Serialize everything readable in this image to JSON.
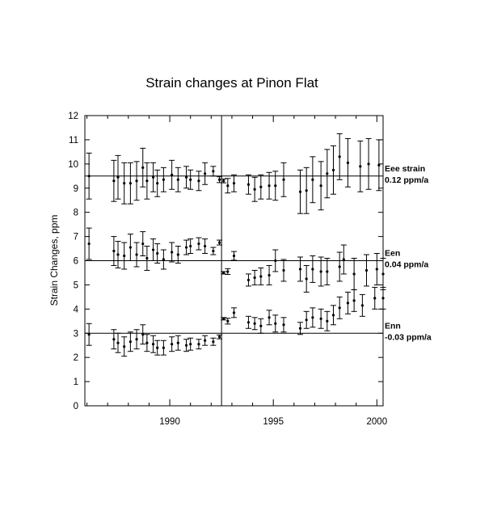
{
  "chart_data": {
    "type": "scatter",
    "title": "Strain changes at Pinon Flat",
    "xlabel": "",
    "ylabel": "Strain Changes, ppm",
    "xlim": [
      1985.9,
      2000.3
    ],
    "ylim": [
      0,
      12
    ],
    "x_ticks": [
      "1990",
      "1995",
      "2000"
    ],
    "y_ticks": [
      "0",
      "1",
      "2",
      "3",
      "4",
      "5",
      "6",
      "7",
      "8",
      "9",
      "10",
      "11",
      "12"
    ],
    "grid": false,
    "event_line_x": 1992.5,
    "annotations": [
      {
        "series": "Eee",
        "line1": "Eee strain",
        "line2": "0.12 ppm/a",
        "ref_y": 9.5
      },
      {
        "series": "Een",
        "line1": "Een",
        "line2": "0.04 ppm/a",
        "ref_y": 6.0
      },
      {
        "series": "Enn",
        "line1": "Enn",
        "line2": "-0.03 ppm/a",
        "ref_y": 3.0
      }
    ],
    "series": [
      {
        "key": "Eee",
        "points": [
          {
            "x": 1986.1,
            "y": 9.5,
            "err": 0.95
          },
          {
            "x": 1987.3,
            "y": 9.3,
            "err": 0.85
          },
          {
            "x": 1987.5,
            "y": 9.45,
            "err": 0.9
          },
          {
            "x": 1987.8,
            "y": 9.2,
            "err": 0.85
          },
          {
            "x": 1988.1,
            "y": 9.2,
            "err": 0.85
          },
          {
            "x": 1988.4,
            "y": 9.3,
            "err": 0.8
          },
          {
            "x": 1988.7,
            "y": 9.85,
            "err": 0.8
          },
          {
            "x": 1988.9,
            "y": 9.3,
            "err": 0.75
          },
          {
            "x": 1989.2,
            "y": 9.45,
            "err": 0.6
          },
          {
            "x": 1989.4,
            "y": 9.2,
            "err": 0.55
          },
          {
            "x": 1989.7,
            "y": 9.35,
            "err": 0.5
          },
          {
            "x": 1990.1,
            "y": 9.55,
            "err": 0.6
          },
          {
            "x": 1990.4,
            "y": 9.35,
            "err": 0.5
          },
          {
            "x": 1990.8,
            "y": 9.45,
            "err": 0.45
          },
          {
            "x": 1991.0,
            "y": 9.35,
            "err": 0.4
          },
          {
            "x": 1991.4,
            "y": 9.3,
            "err": 0.4
          },
          {
            "x": 1991.7,
            "y": 9.6,
            "err": 0.45
          },
          {
            "x": 1992.1,
            "y": 9.7,
            "err": 0.2
          },
          {
            "x": 1992.4,
            "y": 9.35,
            "err": 0.12
          },
          {
            "x": 1992.6,
            "y": 9.3,
            "err": 0.08
          },
          {
            "x": 1992.8,
            "y": 9.1,
            "err": 0.3
          },
          {
            "x": 1993.1,
            "y": 9.2,
            "err": 0.35
          },
          {
            "x": 1993.8,
            "y": 9.15,
            "err": 0.4
          },
          {
            "x": 1994.1,
            "y": 8.95,
            "err": 0.5
          },
          {
            "x": 1994.4,
            "y": 9.05,
            "err": 0.5
          },
          {
            "x": 1994.8,
            "y": 9.1,
            "err": 0.55
          },
          {
            "x": 1995.1,
            "y": 9.1,
            "err": 0.6
          },
          {
            "x": 1995.5,
            "y": 9.35,
            "err": 0.7
          },
          {
            "x": 1996.3,
            "y": 8.85,
            "err": 0.9
          },
          {
            "x": 1996.6,
            "y": 8.9,
            "err": 0.95
          },
          {
            "x": 1996.9,
            "y": 9.35,
            "err": 0.95
          },
          {
            "x": 1997.3,
            "y": 9.1,
            "err": 1.0
          },
          {
            "x": 1997.6,
            "y": 9.6,
            "err": 1.0
          },
          {
            "x": 1997.9,
            "y": 9.75,
            "err": 1.0
          },
          {
            "x": 1998.2,
            "y": 10.3,
            "err": 0.95
          },
          {
            "x": 1998.6,
            "y": 10.05,
            "err": 1.0
          },
          {
            "x": 1999.2,
            "y": 9.9,
            "err": 1.05
          },
          {
            "x": 1999.6,
            "y": 10.0,
            "err": 1.05
          },
          {
            "x": 2000.1,
            "y": 9.95,
            "err": 1.05
          }
        ]
      },
      {
        "key": "Een",
        "points": [
          {
            "x": 1986.1,
            "y": 6.7,
            "err": 0.65
          },
          {
            "x": 1987.3,
            "y": 6.4,
            "err": 0.6
          },
          {
            "x": 1987.5,
            "y": 6.25,
            "err": 0.55
          },
          {
            "x": 1987.8,
            "y": 6.2,
            "err": 0.55
          },
          {
            "x": 1988.1,
            "y": 6.55,
            "err": 0.55
          },
          {
            "x": 1988.4,
            "y": 6.25,
            "err": 0.5
          },
          {
            "x": 1988.7,
            "y": 6.7,
            "err": 0.5
          },
          {
            "x": 1988.9,
            "y": 6.1,
            "err": 0.5
          },
          {
            "x": 1989.2,
            "y": 6.45,
            "err": 0.45
          },
          {
            "x": 1989.4,
            "y": 6.3,
            "err": 0.4
          },
          {
            "x": 1989.7,
            "y": 6.05,
            "err": 0.4
          },
          {
            "x": 1990.1,
            "y": 6.35,
            "err": 0.4
          },
          {
            "x": 1990.4,
            "y": 6.25,
            "err": 0.35
          },
          {
            "x": 1990.8,
            "y": 6.55,
            "err": 0.3
          },
          {
            "x": 1991.0,
            "y": 6.6,
            "err": 0.3
          },
          {
            "x": 1991.4,
            "y": 6.7,
            "err": 0.25
          },
          {
            "x": 1991.7,
            "y": 6.6,
            "err": 0.3
          },
          {
            "x": 1992.1,
            "y": 6.4,
            "err": 0.15
          },
          {
            "x": 1992.4,
            "y": 6.75,
            "err": 0.1
          },
          {
            "x": 1992.6,
            "y": 5.5,
            "err": 0.05
          },
          {
            "x": 1992.8,
            "y": 5.55,
            "err": 0.12
          },
          {
            "x": 1993.1,
            "y": 6.2,
            "err": 0.18
          },
          {
            "x": 1993.8,
            "y": 5.2,
            "err": 0.25
          },
          {
            "x": 1994.1,
            "y": 5.3,
            "err": 0.3
          },
          {
            "x": 1994.4,
            "y": 5.35,
            "err": 0.35
          },
          {
            "x": 1994.8,
            "y": 5.4,
            "err": 0.4
          },
          {
            "x": 1995.1,
            "y": 6.0,
            "err": 0.45
          },
          {
            "x": 1995.5,
            "y": 5.6,
            "err": 0.45
          },
          {
            "x": 1996.3,
            "y": 5.65,
            "err": 0.5
          },
          {
            "x": 1996.6,
            "y": 5.25,
            "err": 0.55
          },
          {
            "x": 1996.9,
            "y": 5.65,
            "err": 0.55
          },
          {
            "x": 1997.3,
            "y": 5.55,
            "err": 0.6
          },
          {
            "x": 1997.6,
            "y": 5.55,
            "err": 0.55
          },
          {
            "x": 1998.2,
            "y": 5.75,
            "err": 0.6
          },
          {
            "x": 1998.4,
            "y": 6.05,
            "err": 0.6
          },
          {
            "x": 1998.9,
            "y": 5.45,
            "err": 0.65
          },
          {
            "x": 1999.5,
            "y": 5.6,
            "err": 0.65
          },
          {
            "x": 2000.0,
            "y": 5.65,
            "err": 0.65
          },
          {
            "x": 2000.3,
            "y": 5.45,
            "err": 0.65
          }
        ]
      },
      {
        "key": "Enn",
        "points": [
          {
            "x": 1986.1,
            "y": 2.95,
            "err": 0.45
          },
          {
            "x": 1987.3,
            "y": 2.75,
            "err": 0.4
          },
          {
            "x": 1987.5,
            "y": 2.6,
            "err": 0.4
          },
          {
            "x": 1987.8,
            "y": 2.45,
            "err": 0.4
          },
          {
            "x": 1988.1,
            "y": 2.65,
            "err": 0.4
          },
          {
            "x": 1988.4,
            "y": 2.75,
            "err": 0.4
          },
          {
            "x": 1988.7,
            "y": 2.95,
            "err": 0.4
          },
          {
            "x": 1988.9,
            "y": 2.6,
            "err": 0.35
          },
          {
            "x": 1989.2,
            "y": 2.55,
            "err": 0.35
          },
          {
            "x": 1989.4,
            "y": 2.4,
            "err": 0.3
          },
          {
            "x": 1989.7,
            "y": 2.4,
            "err": 0.3
          },
          {
            "x": 1990.1,
            "y": 2.55,
            "err": 0.3
          },
          {
            "x": 1990.4,
            "y": 2.6,
            "err": 0.3
          },
          {
            "x": 1990.8,
            "y": 2.5,
            "err": 0.25
          },
          {
            "x": 1991.0,
            "y": 2.55,
            "err": 0.25
          },
          {
            "x": 1991.4,
            "y": 2.55,
            "err": 0.2
          },
          {
            "x": 1991.7,
            "y": 2.7,
            "err": 0.2
          },
          {
            "x": 1992.1,
            "y": 2.65,
            "err": 0.15
          },
          {
            "x": 1992.4,
            "y": 2.85,
            "err": 0.08
          },
          {
            "x": 1992.6,
            "y": 3.6,
            "err": 0.05
          },
          {
            "x": 1992.8,
            "y": 3.5,
            "err": 0.12
          },
          {
            "x": 1993.1,
            "y": 3.85,
            "err": 0.2
          },
          {
            "x": 1993.8,
            "y": 3.45,
            "err": 0.25
          },
          {
            "x": 1994.1,
            "y": 3.4,
            "err": 0.25
          },
          {
            "x": 1994.4,
            "y": 3.3,
            "err": 0.3
          },
          {
            "x": 1994.8,
            "y": 3.65,
            "err": 0.3
          },
          {
            "x": 1995.1,
            "y": 3.4,
            "err": 0.35
          },
          {
            "x": 1995.5,
            "y": 3.35,
            "err": 0.3
          },
          {
            "x": 1996.3,
            "y": 3.2,
            "err": 0.25
          },
          {
            "x": 1996.6,
            "y": 3.55,
            "err": 0.35
          },
          {
            "x": 1996.9,
            "y": 3.65,
            "err": 0.4
          },
          {
            "x": 1997.3,
            "y": 3.6,
            "err": 0.4
          },
          {
            "x": 1997.6,
            "y": 3.5,
            "err": 0.4
          },
          {
            "x": 1997.9,
            "y": 3.75,
            "err": 0.4
          },
          {
            "x": 1998.2,
            "y": 4.05,
            "err": 0.45
          },
          {
            "x": 1998.6,
            "y": 4.25,
            "err": 0.45
          },
          {
            "x": 1998.9,
            "y": 4.35,
            "err": 0.45
          },
          {
            "x": 1999.3,
            "y": 4.15,
            "err": 0.45
          },
          {
            "x": 1999.9,
            "y": 4.45,
            "err": 0.45
          },
          {
            "x": 2000.3,
            "y": 4.45,
            "err": 0.45
          }
        ]
      }
    ]
  }
}
